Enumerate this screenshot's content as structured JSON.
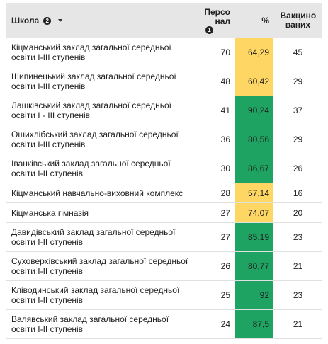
{
  "header": {
    "school": "Школа",
    "school_sort_badge": "2",
    "staff": "Персо нал",
    "staff_sort_badge": "1",
    "percent": "%",
    "vaccinated": "Вакцино ваних"
  },
  "table": {
    "rows": [
      {
        "school": "Кіцманський заклад загальної середньої освіти I-III ступенів",
        "staff": "70",
        "percent": "64,29",
        "vaccinated": "45",
        "percent_color": "#fdd663"
      },
      {
        "school": "Шипинецький заклад загальної середньої освіти I-III ступенів",
        "staff": "48",
        "percent": "60,42",
        "vaccinated": "29",
        "percent_color": "#fdd663"
      },
      {
        "school": "Лашківський заклад загальної середньої освіти I - III ступенів",
        "staff": "41",
        "percent": "90,24",
        "vaccinated": "37",
        "percent_color": "#1ea362"
      },
      {
        "school": "Ошихлібський заклад загальної середньої освіти I-III ступенів",
        "staff": "36",
        "percent": "80,56",
        "vaccinated": "29",
        "percent_color": "#1ea362"
      },
      {
        "school": "Іванківський заклад загальної середньої освіти I-II ступенів",
        "staff": "30",
        "percent": "86,67",
        "vaccinated": "26",
        "percent_color": "#1ea362"
      },
      {
        "school": "Кіцманський навчально-виховний комплекс",
        "staff": "28",
        "percent": "57,14",
        "vaccinated": "16",
        "percent_color": "#fdd663"
      },
      {
        "school": "Кіцманська гімназія",
        "staff": "27",
        "percent": "74,07",
        "vaccinated": "20",
        "percent_color": "#fdd663"
      },
      {
        "school": "Давидівський заклад загальної середньої освіти I-II ступенів",
        "staff": "27",
        "percent": "85,19",
        "vaccinated": "23",
        "percent_color": "#1ea362"
      },
      {
        "school": "Суховерхівський заклад загальної середньої освіти I-II ступенів",
        "staff": "26",
        "percent": "80,77",
        "vaccinated": "21",
        "percent_color": "#1ea362"
      },
      {
        "school": "Кліводинський заклад загальної середньої освіти I-II ступенів",
        "staff": "25",
        "percent": "92",
        "vaccinated": "23",
        "percent_color": "#1ea362"
      },
      {
        "school": "Валявський заклад загальної середньої освіти I-II ступенів",
        "staff": "24",
        "percent": "87,5",
        "vaccinated": "21",
        "percent_color": "#1ea362"
      }
    ]
  }
}
